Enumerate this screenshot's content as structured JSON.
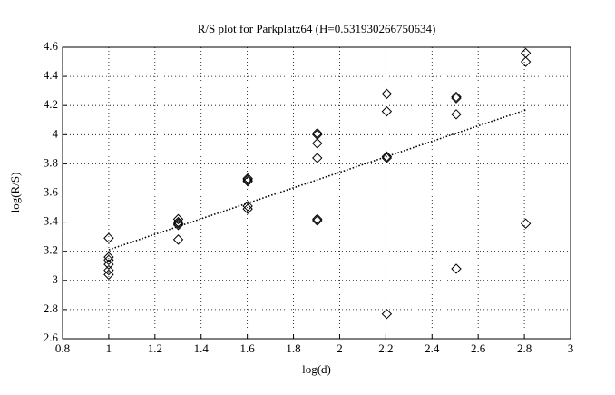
{
  "chart_data": {
    "type": "scatter",
    "title": "R/S plot for Parkplatz64 (H=0.531930266750634)",
    "xlabel": "log(d)",
    "ylabel": "log(R/S)",
    "xlim": [
      0.8,
      3
    ],
    "xticks": [
      0.8,
      1,
      1.2,
      1.4,
      1.6,
      1.8,
      2,
      2.2,
      2.4,
      2.6,
      2.8,
      3
    ],
    "ylim": [
      2.6,
      4.6
    ],
    "yticks": [
      2.6,
      2.8,
      3,
      3.2,
      3.4,
      3.6,
      3.8,
      4,
      4.2,
      4.4,
      4.6
    ],
    "grid": true,
    "series": [
      {
        "marker": "diamond",
        "color": "#000000",
        "x": [
          1,
          1,
          1,
          1,
          1,
          1,
          1.301,
          1.301,
          1.301,
          1.301,
          1.301,
          1.602,
          1.602,
          1.602,
          1.602,
          1.602,
          1.903,
          1.903,
          1.903,
          1.903,
          1.903,
          1.903,
          2.204,
          2.204,
          2.204,
          2.204,
          2.204,
          2.505,
          2.505,
          2.505,
          2.505,
          2.806,
          2.806,
          2.806
        ],
        "y": [
          3.29,
          3.16,
          3.14,
          3.11,
          3.07,
          3.04,
          3.42,
          3.4,
          3.39,
          3.38,
          3.28,
          3.7,
          3.69,
          3.68,
          3.51,
          3.49,
          4.01,
          4.0,
          3.94,
          3.84,
          3.42,
          3.41,
          4.28,
          4.16,
          3.85,
          3.84,
          2.77,
          4.26,
          4.25,
          4.14,
          3.08,
          4.56,
          4.5,
          3.39
        ]
      },
      {
        "line": "dotted",
        "color": "#000000",
        "x": [
          1,
          2.806
        ],
        "y": [
          3.21,
          4.17
        ]
      }
    ]
  }
}
